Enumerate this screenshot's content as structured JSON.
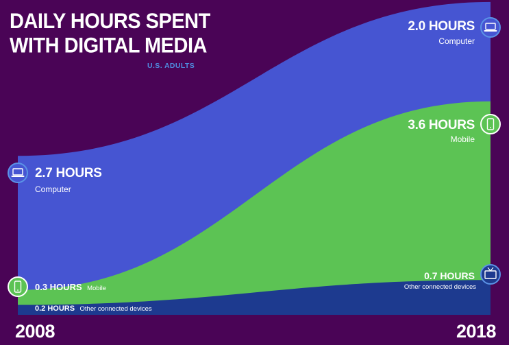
{
  "title_line1": "DAILY HOURS SPENT",
  "title_line2": "WITH DIGITAL MEDIA",
  "subtitle": "U.S. ADULTS",
  "years": {
    "start": "2008",
    "end": "2018"
  },
  "labels": {
    "computer_2008_value": "2.7 HOURS",
    "computer_2008_name": "Computer",
    "mobile_2008_value": "0.3 HOURS",
    "mobile_2008_name": "Mobile",
    "other_2008_value": "0.2 HOURS",
    "other_2008_name": "Other connected devices",
    "computer_2018_value": "2.0 HOURS",
    "computer_2018_name": "Computer",
    "mobile_2018_value": "3.6 HOURS",
    "mobile_2018_name": "Mobile",
    "other_2018_value": "0.7 HOURS",
    "other_2018_name": "Other connected devices"
  },
  "colors": {
    "background": "#4a0456",
    "computer": "#4655d2",
    "mobile": "#5cc354",
    "other": "#1d3a8f",
    "icon_ring": "#5b93e6"
  },
  "chart_data": {
    "type": "area",
    "title": "DAILY HOURS SPENT WITH DIGITAL MEDIA",
    "subtitle": "U.S. ADULTS",
    "x": [
      "2008",
      "2018"
    ],
    "stacked": true,
    "series": [
      {
        "name": "Other connected devices",
        "values": [
          0.2,
          0.7
        ],
        "color": "#1d3a8f",
        "icon": "tv-icon"
      },
      {
        "name": "Mobile",
        "values": [
          0.3,
          3.6
        ],
        "color": "#5cc354",
        "icon": "phone-icon"
      },
      {
        "name": "Computer",
        "values": [
          2.7,
          2.0
        ],
        "color": "#4655d2",
        "icon": "laptop-icon"
      }
    ],
    "unit": "hours",
    "grid": false,
    "legend": "none"
  }
}
